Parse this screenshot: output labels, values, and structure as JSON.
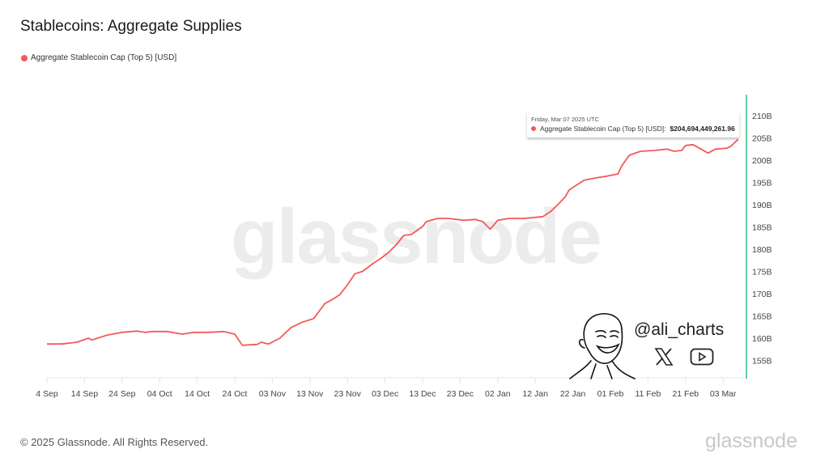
{
  "title": "Stablecoins: Aggregate Supplies",
  "legend": {
    "label": "Aggregate Stablecoin Cap (Top 5) [USD]",
    "color": "#f25a5a"
  },
  "watermark": "glassnode",
  "tooltip": {
    "date": "Friday, Mar 07 2025 UTC",
    "series": "Aggregate Stablecoin Cap (Top 5) [USD]:",
    "value": "$204,694,449,261.96"
  },
  "branding": {
    "handle": "@ali_charts",
    "icons": [
      "x-logo-icon",
      "youtube-icon"
    ]
  },
  "footer": {
    "copyright": "© 2025 Glassnode. All Rights Reserved.",
    "logo": "glassnode"
  },
  "colors": {
    "line": "#f25a5a",
    "axis": "#2ec48a"
  },
  "chart_data": {
    "type": "line",
    "title": "Stablecoins: Aggregate Supplies",
    "xlabel": "",
    "ylabel": "",
    "x_ticks": [
      "4 Sep",
      "14 Sep",
      "24 Sep",
      "04 Oct",
      "14 Oct",
      "24 Oct",
      "03 Nov",
      "13 Nov",
      "23 Nov",
      "03 Dec",
      "13 Dec",
      "23 Dec",
      "02 Jan",
      "12 Jan",
      "22 Jan",
      "01 Feb",
      "11 Feb",
      "21 Feb",
      "03 Mar"
    ],
    "y_ticks": [
      "155B",
      "160B",
      "165B",
      "170B",
      "175B",
      "180B",
      "185B",
      "190B",
      "195B",
      "200B",
      "205B",
      "210B"
    ],
    "ylim": [
      151,
      212
    ],
    "xlim": [
      "2024-09-04",
      "2025-03-09"
    ],
    "grid": false,
    "legend_position": "top-left",
    "series": [
      {
        "name": "Aggregate Stablecoin Cap (Top 5) [USD]",
        "unit": "B",
        "points": [
          [
            "2024-09-04",
            158.7
          ],
          [
            "2024-09-08",
            158.7
          ],
          [
            "2024-09-12",
            159.1
          ],
          [
            "2024-09-15",
            160.0
          ],
          [
            "2024-09-16",
            159.6
          ],
          [
            "2024-09-20",
            160.7
          ],
          [
            "2024-09-24",
            161.3
          ],
          [
            "2024-09-28",
            161.6
          ],
          [
            "2024-09-30",
            161.3
          ],
          [
            "2024-10-02",
            161.5
          ],
          [
            "2024-10-06",
            161.5
          ],
          [
            "2024-10-10",
            160.9
          ],
          [
            "2024-10-13",
            161.3
          ],
          [
            "2024-10-17",
            161.3
          ],
          [
            "2024-10-21",
            161.5
          ],
          [
            "2024-10-24",
            160.9
          ],
          [
            "2024-10-26",
            158.4
          ],
          [
            "2024-10-30",
            158.6
          ],
          [
            "2024-10-31",
            159.1
          ],
          [
            "2024-11-02",
            158.7
          ],
          [
            "2024-11-05",
            160.0
          ],
          [
            "2024-11-08",
            162.4
          ],
          [
            "2024-11-11",
            163.6
          ],
          [
            "2024-11-14",
            164.4
          ],
          [
            "2024-11-17",
            167.8
          ],
          [
            "2024-11-19",
            168.7
          ],
          [
            "2024-11-21",
            169.8
          ],
          [
            "2024-11-23",
            172.0
          ],
          [
            "2024-11-25",
            174.5
          ],
          [
            "2024-11-27",
            175.0
          ],
          [
            "2024-11-30",
            176.9
          ],
          [
            "2024-12-02",
            178.0
          ],
          [
            "2024-12-04",
            179.3
          ],
          [
            "2024-12-06",
            181.0
          ],
          [
            "2024-12-08",
            183.1
          ],
          [
            "2024-12-10",
            183.3
          ],
          [
            "2024-12-13",
            185.1
          ],
          [
            "2024-12-14",
            186.2
          ],
          [
            "2024-12-17",
            186.9
          ],
          [
            "2024-12-20",
            186.9
          ],
          [
            "2024-12-24",
            186.5
          ],
          [
            "2024-12-27",
            186.7
          ],
          [
            "2024-12-29",
            186.2
          ],
          [
            "2024-12-31",
            184.5
          ],
          [
            "2025-01-02",
            186.5
          ],
          [
            "2025-01-05",
            186.9
          ],
          [
            "2025-01-09",
            186.9
          ],
          [
            "2025-01-14",
            187.3
          ],
          [
            "2025-01-16",
            188.4
          ],
          [
            "2025-01-18",
            190.0
          ],
          [
            "2025-01-20",
            191.8
          ],
          [
            "2025-01-21",
            193.3
          ],
          [
            "2025-01-25",
            195.5
          ],
          [
            "2025-01-28",
            196.0
          ],
          [
            "2025-01-31",
            196.4
          ],
          [
            "2025-02-03",
            196.9
          ],
          [
            "2025-02-04",
            198.7
          ],
          [
            "2025-02-06",
            201.1
          ],
          [
            "2025-02-09",
            202.0
          ],
          [
            "2025-02-13",
            202.2
          ],
          [
            "2025-02-16",
            202.5
          ],
          [
            "2025-02-18",
            202.0
          ],
          [
            "2025-02-20",
            202.2
          ],
          [
            "2025-02-21",
            203.3
          ],
          [
            "2025-02-23",
            203.5
          ],
          [
            "2025-02-27",
            201.6
          ],
          [
            "2025-03-01",
            202.5
          ],
          [
            "2025-03-04",
            202.7
          ],
          [
            "2025-03-05",
            203.1
          ],
          [
            "2025-03-07",
            204.7
          ]
        ]
      }
    ]
  }
}
